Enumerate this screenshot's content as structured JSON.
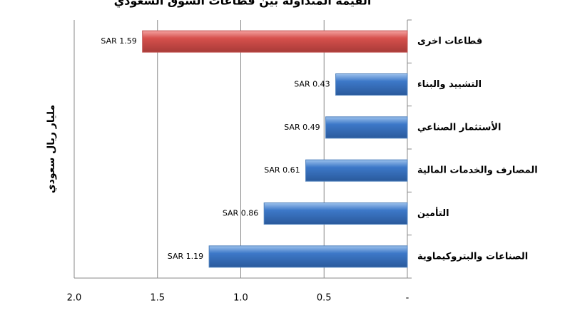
{
  "chart_data": {
    "type": "bar",
    "orientation": "horizontal",
    "title": "القيمة المتداولة بين قطاعات السوق السعودي",
    "y_label": "مليار ريال سعودي",
    "categories": [
      "قطاعات اخرى",
      "التشييد والبناء",
      "الأستثمار الصناعي",
      "المصارف والخدمات المالية",
      "التأمين",
      "الصناعات والبتروكيماوية"
    ],
    "values": [
      1.59,
      0.43,
      0.49,
      0.61,
      0.86,
      1.19
    ],
    "value_labels": [
      "SAR 1.59",
      "SAR 0.43",
      "SAR 0.49",
      "SAR 0.61",
      "SAR 0.86",
      "SAR 1.19"
    ],
    "colors": [
      "#c0504d",
      "#4f81bd",
      "#4f81bd",
      "#4f81bd",
      "#4f81bd",
      "#4f81bd"
    ],
    "xlim": [
      2,
      0
    ],
    "xticks": [
      {
        "value": 2,
        "label": "2.0"
      },
      1.5,
      {
        "value": 1,
        "label": "1.0"
      },
      0.5,
      {
        "value": 0,
        "label": "-"
      }
    ],
    "grid": true
  }
}
